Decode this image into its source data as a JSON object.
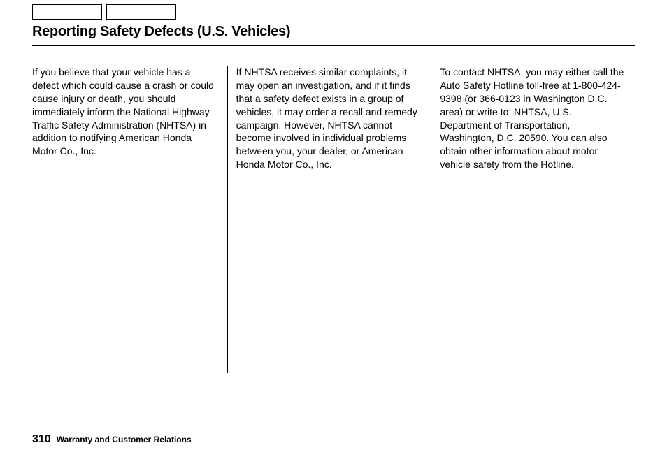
{
  "page": {
    "title": "Reporting Safety Defects (U.S. Vehicles)",
    "number": "310",
    "footer_label": "Warranty and Customer Relations"
  },
  "columns": {
    "col1": "If you believe that your vehicle has a defect which could cause a crash or could cause injury or death, you should immediately inform the National Highway Traffic Safety Administration (NHTSA) in addition to notifying American Honda Motor Co., Inc.",
    "col2": "If NHTSA receives similar com­plaints, it may open an investigation, and if it finds that a safety defect exists in a group of vehicles, it may order a recall and remedy campaign. However, NHTSA cannot become involved in individual problems between you, your dealer, or American Honda Motor Co., Inc.",
    "col3": "To contact NHTSA, you may either call the Auto Safety Hotline toll-free at 1-800-424-9398 (or 366-0123 in Washington D.C. area) or write to: NHTSA, U.S. Department of Transportation, Washington, D.C, 20590. You can also obtain other information about motor vehicle safety from the Hotline."
  },
  "styling": {
    "background_color": "#ffffff",
    "text_color": "#000000",
    "divider_color": "#000000",
    "title_fontsize": 20,
    "body_fontsize": 14,
    "footer_number_fontsize": 16,
    "footer_label_fontsize": 12,
    "line_height": 1.35
  }
}
